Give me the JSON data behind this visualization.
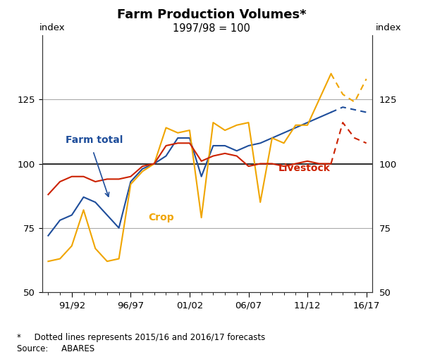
{
  "title": "Farm Production Volumes*",
  "subtitle": "1997/98 = 100",
  "ylabel_left": "index",
  "ylabel_right": "index",
  "ylim": [
    50,
    150
  ],
  "yticks": [
    50,
    75,
    100,
    125
  ],
  "footnote": "*     Dotted lines represents 2015/16 and 2016/17 forecasts",
  "source": "Source:     ABARES",
  "years": [
    1989,
    1990,
    1991,
    1992,
    1993,
    1994,
    1995,
    1996,
    1997,
    1998,
    1999,
    2000,
    2001,
    2002,
    2003,
    2004,
    2005,
    2006,
    2007,
    2008,
    2009,
    2010,
    2011,
    2012,
    2013,
    2014,
    2015,
    2016
  ],
  "xtick_labels": [
    "91/92",
    "96/97",
    "01/02",
    "06/07",
    "11/12",
    "16/17"
  ],
  "xtick_positions": [
    2,
    7,
    12,
    17,
    22,
    27
  ],
  "farm_total": [
    72,
    78,
    80,
    87,
    85,
    80,
    75,
    93,
    98,
    100,
    103,
    110,
    110,
    95,
    107,
    107,
    105,
    107,
    108,
    110,
    112,
    114,
    116,
    118,
    120,
    122,
    121,
    120
  ],
  "crop": [
    62,
    63,
    68,
    82,
    67,
    62,
    63,
    92,
    97,
    100,
    114,
    112,
    113,
    79,
    116,
    113,
    115,
    116,
    85,
    110,
    108,
    115,
    115,
    125,
    135,
    127,
    124,
    133
  ],
  "livestock": [
    88,
    93,
    95,
    95,
    93,
    94,
    94,
    95,
    99,
    100,
    107,
    108,
    108,
    101,
    103,
    104,
    103,
    99,
    100,
    100,
    99,
    100,
    101,
    100,
    100,
    116,
    110,
    108
  ],
  "farm_total_color": "#1f4e9b",
  "crop_color": "#f0a500",
  "livestock_color": "#cc2200",
  "hline_color": "#333333",
  "grid_color": "#aaaaaa",
  "forecast_start_idx": 24,
  "background_color": "#ffffff"
}
